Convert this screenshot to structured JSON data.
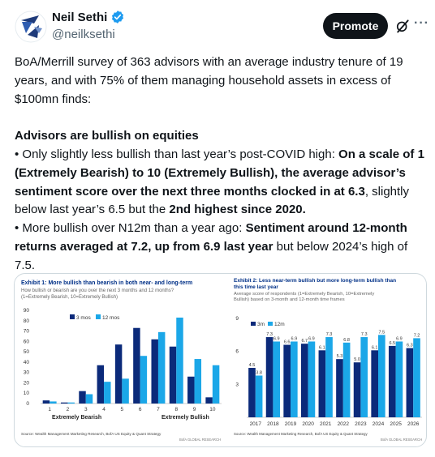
{
  "user": {
    "name": "Neil Sethi",
    "handle": "@neilksethi"
  },
  "actions": {
    "promote_label": "Promote",
    "more_label": "···"
  },
  "tweet": {
    "p1": "BoA/Merrill survey of 363 advisors with an average industry tenure of 19 years, and with 75% of them managing household assets in excess of $100mn finds:",
    "heading": "Advisors are bullish on equities",
    "b1_bullet": "• ",
    "b1_plain1": "Only slightly less bullish than last year’s post-COVID high: ",
    "b1_bold1": "On a scale of 1 (Extremely Bearish) to 10 (Extremely Bullish), the average advisor’s sentiment score over the next three months clocked in at 6.3",
    "b1_plain2": ", slightly below last year’s 6.5 but the ",
    "b1_bold2": "2nd highest since 2020.",
    "b2_bullet": "• ",
    "b2_plain1": "More bullish over N12m than a year ago: ",
    "b2_bold1": "Sentiment around 12-month returns averaged at 7.2, up from 6.9 last year",
    "b2_plain2": " but below 2024’s high of 7.5."
  },
  "colors": {
    "navy": "#0b2a7a",
    "light_blue": "#1ba7e8"
  },
  "chart_data": [
    {
      "type": "bar",
      "title": "Exhibit 1: More bullish than bearish in both near- and long-term",
      "subtitle": "How bullish or bearish are you over the next 3 months and 12 months? (1=Extremely Bearish, 10=Extremely Bullish)",
      "categories": [
        "1",
        "2",
        "3",
        "4",
        "5",
        "6",
        "7",
        "8",
        "9",
        "10"
      ],
      "series": [
        {
          "name": "3 mos",
          "values": [
            3,
            1,
            12,
            37,
            57,
            73,
            62,
            55,
            26,
            6
          ]
        },
        {
          "name": "12 mos",
          "values": [
            2,
            1,
            9,
            21,
            24,
            46,
            69,
            83,
            43,
            37
          ]
        }
      ],
      "ylim": [
        0,
        90
      ],
      "yticks": [
        "0",
        "10",
        "20",
        "30",
        "40",
        "50",
        "60",
        "70",
        "80",
        "90"
      ],
      "x_group_labels": [
        "Extremely Bearish",
        "Extremely Bullish"
      ],
      "legend": "top",
      "source": "Source: Wealth Management Marketing Research, BofA US Equity & Quant Strategy",
      "credit": "BofA GLOBAL RESEARCH"
    },
    {
      "type": "bar",
      "title": "Exhibit 2: Less near-term bullish but more long-term bullish than this time last year",
      "subtitle": "Average score of respondents (1=Extremely Bearish, 10=Extremely Bullish) based on 3-month and 12-month time frames",
      "categories": [
        "2017",
        "2018",
        "2019",
        "2020",
        "2021",
        "2022",
        "2023",
        "2024",
        "2025",
        "2026"
      ],
      "series": [
        {
          "name": "3m",
          "values": [
            4.5,
            7.3,
            6.6,
            6.7,
            6.1,
            5.3,
            5.0,
            6.1,
            6.5,
            6.3
          ]
        },
        {
          "name": "12m",
          "values": [
            3.8,
            6.9,
            6.9,
            6.9,
            7.3,
            6.8,
            7.3,
            7.5,
            6.9,
            7.2
          ]
        }
      ],
      "labels_3m": [
        "4.5",
        "7.3",
        "6.6",
        "6.7",
        "6.1",
        "5.3",
        "5.0",
        "6.1",
        "6.5",
        "6.3"
      ],
      "labels_12m": [
        "3.8",
        "6.9",
        "6.9",
        "6.9",
        "7.3",
        "6.8",
        "7.3",
        "7.5",
        "6.9",
        "7.2"
      ],
      "ylim": [
        0,
        9
      ],
      "yticks": [
        "3",
        "6",
        "9"
      ],
      "legend": "top",
      "source": "Source: Wealth Management Marketing Research, BofA US Equity & Quant Strategy",
      "credit": "BofA GLOBAL RESEARCH"
    }
  ]
}
